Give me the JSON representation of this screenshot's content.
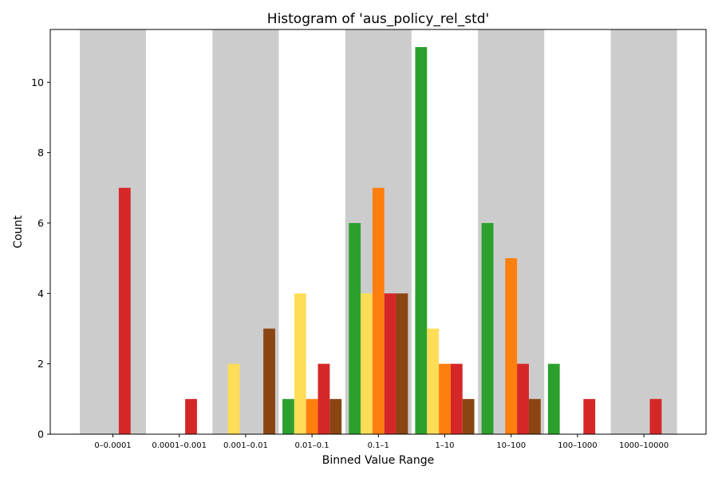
{
  "chart_data": {
    "type": "bar",
    "title": "Histogram of 'aus_policy_rel_std'",
    "xlabel": "Binned Value Range",
    "ylabel": "Count",
    "ylim": [
      0,
      11.5
    ],
    "yticks": [
      0,
      2,
      4,
      6,
      8,
      10
    ],
    "categories": [
      "0–0.0001",
      "0.0001–0.001",
      "0.001–0.01",
      "0.01–0.1",
      "0.1–1",
      "1–10",
      "10–100",
      "100–1000",
      "1000–10000"
    ],
    "shaded_bins": [
      0,
      2,
      4,
      6,
      8
    ],
    "shade_color": "#cccccc",
    "series": [
      {
        "color": "#2ca02c",
        "values": [
          0,
          0,
          0,
          1,
          6,
          11,
          6,
          2,
          0
        ]
      },
      {
        "color": "#ffdd57",
        "values": [
          0,
          0,
          2,
          4,
          4,
          3,
          0,
          0,
          0
        ]
      },
      {
        "color": "#ff7f0e",
        "values": [
          0,
          0,
          0,
          1,
          7,
          2,
          5,
          0,
          0
        ]
      },
      {
        "color": "#d62728",
        "values": [
          7,
          1,
          0,
          2,
          4,
          2,
          2,
          1,
          1
        ]
      },
      {
        "color": "#8b4513",
        "values": [
          0,
          0,
          3,
          1,
          4,
          1,
          1,
          0,
          0
        ]
      }
    ],
    "grid": false,
    "legend": "none"
  }
}
